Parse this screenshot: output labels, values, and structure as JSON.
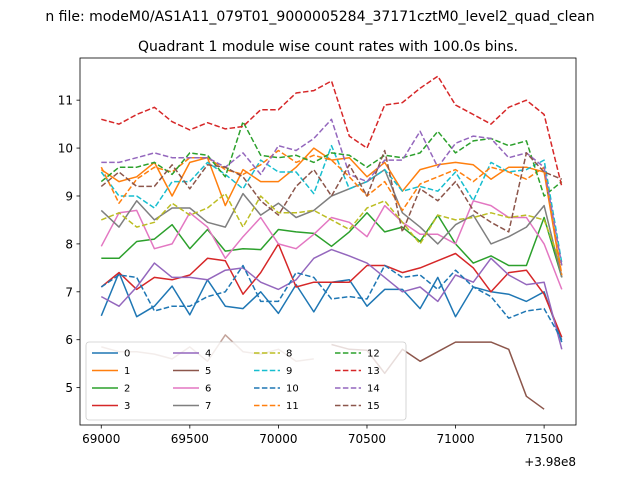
{
  "figure": {
    "suptitle": "n file: modeM0/AS1A11_079T01_9000005284_37171cztM0_level2_quad_clean",
    "offset_label": "+3.98e8"
  },
  "chart_data": {
    "type": "line",
    "title": "Quadrant 1 module wise count rates with 100.0s bins.",
    "xlabel": "",
    "ylabel": "",
    "x_offset": 398000000,
    "xlim": [
      68880,
      71680
    ],
    "ylim": [
      4.22,
      11.88
    ],
    "xticks": [
      69000,
      69500,
      70000,
      70500,
      71000,
      71500
    ],
    "xtick_labels": [
      "69000",
      "69500",
      "70000",
      "70500",
      "71000",
      "71500"
    ],
    "yticks": [
      5,
      6,
      7,
      8,
      9,
      10,
      11
    ],
    "ytick_labels": [
      "5",
      "6",
      "7",
      "8",
      "9",
      "10",
      "11"
    ],
    "grid": false,
    "legend_position": "lower-left",
    "legend_columns": 4,
    "x": [
      69000,
      69100,
      69200,
      69300,
      69400,
      69500,
      69600,
      69700,
      69800,
      69900,
      70000,
      70100,
      70200,
      70300,
      70400,
      70500,
      70600,
      70700,
      70800,
      70900,
      71000,
      71100,
      71200,
      71300,
      71400,
      71500,
      71600
    ],
    "series": [
      {
        "name": "0",
        "color": "#1f77b4",
        "dashed": false,
        "values": [
          6.5,
          7.4,
          6.48,
          6.7,
          7.12,
          6.52,
          7.25,
          6.7,
          6.65,
          7.0,
          6.55,
          7.15,
          6.58,
          7.2,
          7.25,
          6.7,
          7.05,
          7.05,
          6.65,
          7.3,
          6.48,
          7.1,
          7.0,
          6.95,
          6.8,
          7.0,
          5.95
        ]
      },
      {
        "name": "1",
        "color": "#ff7f0e",
        "dashed": false,
        "values": [
          9.55,
          9.3,
          9.4,
          9.7,
          9.0,
          9.7,
          9.8,
          8.8,
          9.55,
          9.3,
          9.3,
          9.6,
          10.0,
          9.75,
          9.8,
          9.4,
          9.7,
          9.1,
          9.55,
          9.65,
          9.7,
          9.65,
          9.35,
          9.6,
          9.6,
          9.5,
          7.3
        ]
      },
      {
        "name": "2",
        "color": "#2ca02c",
        "dashed": false,
        "values": [
          7.7,
          7.7,
          8.05,
          8.1,
          8.4,
          7.9,
          8.3,
          7.85,
          7.9,
          7.88,
          8.3,
          8.25,
          8.22,
          7.95,
          8.25,
          8.65,
          8.25,
          8.35,
          8.05,
          8.6,
          8.0,
          7.6,
          7.75,
          7.55,
          7.55,
          8.55,
          7.3
        ]
      },
      {
        "name": "3",
        "color": "#d62728",
        "dashed": false,
        "values": [
          7.1,
          7.4,
          7.05,
          7.3,
          7.25,
          7.35,
          7.7,
          7.65,
          6.95,
          7.4,
          8.0,
          7.1,
          7.2,
          7.2,
          7.2,
          7.55,
          7.55,
          7.4,
          7.5,
          7.65,
          7.8,
          7.5,
          7.0,
          7.4,
          7.45,
          6.95,
          6.05
        ]
      },
      {
        "name": "4",
        "color": "#9467bd",
        "dashed": false,
        "values": [
          6.9,
          6.7,
          7.1,
          7.6,
          7.3,
          7.3,
          7.25,
          7.45,
          7.5,
          7.2,
          7.05,
          7.25,
          7.7,
          7.88,
          7.75,
          7.6,
          7.3,
          7.0,
          7.1,
          6.8,
          7.35,
          7.2,
          7.7,
          7.35,
          7.15,
          7.2,
          5.8
        ]
      },
      {
        "name": "5",
        "color": "#8c564b",
        "dashed": false,
        "values": [
          null,
          null,
          null,
          null,
          null,
          null,
          null,
          null,
          null,
          null,
          null,
          null,
          null,
          5.9,
          5.8,
          5.78,
          5.3,
          5.8,
          5.55,
          5.75,
          5.95,
          5.95,
          5.95,
          5.8,
          4.82,
          4.55,
          null
        ]
      },
      {
        "name": "6",
        "color": "#e377c2",
        "dashed": false,
        "values": [
          7.95,
          8.65,
          8.7,
          7.9,
          8.0,
          8.65,
          8.35,
          7.7,
          8.15,
          8.55,
          8.0,
          7.9,
          8.2,
          8.55,
          8.45,
          8.15,
          8.8,
          8.45,
          8.2,
          8.2,
          8.0,
          8.9,
          8.8,
          8.55,
          8.55,
          8.0,
          7.05
        ]
      },
      {
        "name": "7",
        "color": "#7f7f7f",
        "dashed": false,
        "values": [
          8.7,
          8.35,
          8.9,
          8.5,
          8.75,
          8.75,
          8.45,
          8.35,
          9.05,
          8.6,
          8.85,
          8.55,
          8.7,
          9.0,
          9.15,
          9.3,
          9.55,
          8.65,
          8.35,
          8.0,
          8.4,
          8.6,
          8.0,
          8.15,
          8.35,
          8.8,
          7.3
        ]
      },
      {
        "name": "8",
        "color": "#bcbd22",
        "dashed": true,
        "values": [
          8.5,
          8.65,
          8.35,
          8.45,
          8.85,
          8.6,
          8.75,
          9.05,
          8.35,
          9.0,
          8.65,
          8.65,
          8.7,
          8.5,
          8.3,
          8.75,
          8.9,
          8.45,
          8.0,
          8.6,
          8.5,
          8.55,
          8.65,
          8.55,
          8.6,
          8.5,
          7.55
        ]
      },
      {
        "name": "9",
        "color": "#17becf",
        "dashed": true,
        "values": [
          9.5,
          9.0,
          9.0,
          8.75,
          9.3,
          9.3,
          9.7,
          9.45,
          9.15,
          9.75,
          9.5,
          9.5,
          9.05,
          10.05,
          9.15,
          9.3,
          9.55,
          9.1,
          9.2,
          9.1,
          9.5,
          8.9,
          9.7,
          9.5,
          9.55,
          9.75,
          7.6
        ]
      },
      {
        "name": "10",
        "color": "#1f77b4",
        "dashed": true,
        "values": [
          7.1,
          7.35,
          7.3,
          6.6,
          6.7,
          6.7,
          6.9,
          7.0,
          7.55,
          6.8,
          6.8,
          7.4,
          7.3,
          6.85,
          6.9,
          6.85,
          7.55,
          7.3,
          7.35,
          7.05,
          7.45,
          7.1,
          6.9,
          6.45,
          6.6,
          6.65,
          6.0
        ]
      },
      {
        "name": "11",
        "color": "#ff7f0e",
        "dashed": true,
        "values": [
          9.6,
          8.85,
          9.35,
          9.6,
          9.5,
          9.8,
          9.8,
          9.55,
          9.45,
          9.65,
          9.95,
          9.7,
          9.85,
          9.75,
          9.4,
          9.0,
          9.3,
          8.7,
          9.25,
          9.4,
          9.55,
          9.3,
          9.6,
          9.5,
          9.35,
          9.6,
          7.35
        ]
      },
      {
        "name": "12",
        "color": "#2ca02c",
        "dashed": true,
        "values": [
          9.3,
          9.6,
          9.6,
          9.7,
          9.45,
          9.9,
          9.85,
          9.4,
          10.55,
          9.85,
          9.8,
          9.85,
          9.7,
          9.9,
          9.85,
          9.6,
          9.85,
          9.8,
          9.9,
          10.35,
          9.9,
          10.15,
          10.2,
          10.05,
          10.15,
          9.0,
          9.3
        ]
      },
      {
        "name": "13",
        "color": "#d62728",
        "dashed": true,
        "values": [
          10.6,
          10.5,
          10.7,
          10.85,
          10.55,
          10.38,
          10.53,
          10.4,
          10.45,
          10.8,
          10.8,
          11.15,
          11.2,
          11.4,
          10.25,
          10.0,
          10.9,
          10.95,
          11.25,
          11.5,
          10.9,
          10.7,
          10.5,
          10.85,
          11.0,
          10.7,
          9.2
        ]
      },
      {
        "name": "14",
        "color": "#9467bd",
        "dashed": true,
        "values": [
          9.7,
          9.7,
          9.8,
          9.9,
          9.8,
          9.8,
          9.8,
          9.6,
          9.9,
          9.45,
          10.05,
          9.95,
          10.2,
          10.6,
          9.45,
          9.3,
          9.75,
          9.75,
          10.35,
          9.6,
          10.1,
          10.25,
          10.2,
          9.8,
          9.9,
          9.6,
          7.55
        ]
      },
      {
        "name": "15",
        "color": "#8c564b",
        "dashed": true,
        "values": [
          9.2,
          9.5,
          9.2,
          9.2,
          9.65,
          9.15,
          9.65,
          9.6,
          9.4,
          8.9,
          8.6,
          9.2,
          9.55,
          9.0,
          9.65,
          9.0,
          9.95,
          8.25,
          9.15,
          8.9,
          9.3,
          8.7,
          8.45,
          8.25,
          9.9,
          9.5,
          9.35
        ]
      }
    ],
    "extra_lines": [
      {
        "name": "tail-5",
        "color": "#c4a49b",
        "dashed": false,
        "x": [
          69000,
          69100,
          69200,
          69300,
          69400,
          69500,
          69600,
          69700,
          69800,
          69900,
          70000,
          70100,
          70200
        ],
        "values": [
          5.85,
          5.75,
          5.75,
          5.7,
          5.6,
          5.85,
          5.55,
          6.1,
          5.75,
          5.7,
          5.8,
          5.55,
          5.6
        ]
      }
    ]
  }
}
